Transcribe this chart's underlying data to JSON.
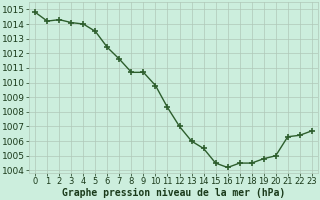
{
  "hours": [
    0,
    1,
    2,
    3,
    4,
    5,
    6,
    7,
    8,
    9,
    10,
    11,
    12,
    13,
    14,
    15,
    16,
    17,
    18,
    19,
    20,
    21,
    22,
    23
  ],
  "pressure": [
    1014.8,
    1014.2,
    1014.3,
    1014.1,
    1014.0,
    1013.5,
    1012.4,
    1011.6,
    1010.7,
    1010.7,
    1009.8,
    1008.3,
    1007.0,
    1006.0,
    1005.5,
    1004.5,
    1004.2,
    1004.5,
    1004.5,
    1004.8,
    1005.0,
    1006.3,
    1006.4,
    1006.7
  ],
  "ylim": [
    1003.8,
    1015.5
  ],
  "yticks": [
    1004,
    1005,
    1006,
    1007,
    1008,
    1009,
    1010,
    1011,
    1012,
    1013,
    1014,
    1015
  ],
  "xlim": [
    -0.5,
    23.5
  ],
  "xticks": [
    0,
    1,
    2,
    3,
    4,
    5,
    6,
    7,
    8,
    9,
    10,
    11,
    12,
    13,
    14,
    15,
    16,
    17,
    18,
    19,
    20,
    21,
    22,
    23
  ],
  "line_color": "#2d5e2d",
  "marker": "+",
  "marker_size": 5,
  "line_width": 1.0,
  "bg_color": "#cceedd",
  "grid_color": "#b0c8b8",
  "xlabel": "Graphe pression niveau de la mer (hPa)",
  "xlabel_color": "#1a3a1a",
  "xlabel_fontsize": 7,
  "tick_fontsize": 6,
  "tick_color": "#1a3a1a",
  "ytick_fontsize": 6.5
}
